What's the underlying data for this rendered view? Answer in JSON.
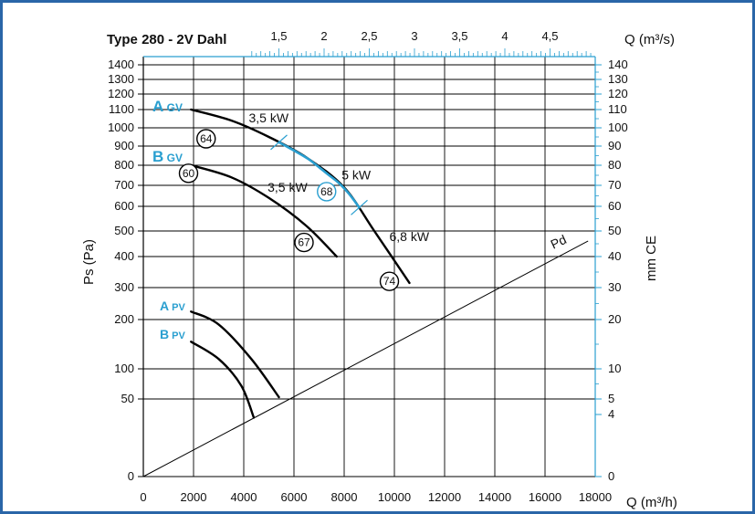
{
  "chart_data": {
    "type": "line",
    "title": "Type 280 - 2V Dahl",
    "xlabel": "Q (m³/h)",
    "xlabel_top": "Q (m³/s)",
    "ylabel": "Ps  (Pa)",
    "ylabel_right": "mm CE",
    "x_range": [
      0,
      18000
    ],
    "x_ticks": [
      "0",
      "2000",
      "4000",
      "6000",
      "8000",
      "10000",
      "12000",
      "14000",
      "16000",
      "18000"
    ],
    "x_top_ticks": [
      "1,5",
      "2",
      "2,5",
      "3",
      "3,5",
      "4",
      "4,5"
    ],
    "y_left_ticks": [
      "1400",
      "1300",
      "1200",
      "1100",
      "1000",
      "900",
      "800",
      "700",
      "600",
      "500",
      "400",
      "300",
      "200",
      "100",
      "50",
      "0"
    ],
    "y_right_ticks": [
      "140",
      "130",
      "120",
      "110",
      "100",
      "90",
      "80",
      "70",
      "60",
      "50",
      "40",
      "30",
      "20",
      "10",
      "5",
      "4",
      "0"
    ],
    "grid": true,
    "series": [
      {
        "name": "A GV",
        "name_main": "A",
        "name_sub": "GV",
        "color": "#000000",
        "highlight_color": "#2a9fd0",
        "x": [
          1900,
          3500,
          5000,
          6500,
          8000,
          9200,
          10600
        ],
        "y": [
          1100,
          1040,
          950,
          840,
          690,
          500,
          315
        ]
      },
      {
        "name": "B GV",
        "name_main": "B",
        "name_sub": "GV",
        "color": "#000000",
        "x": [
          1900,
          3500,
          5000,
          6500,
          7700
        ],
        "y": [
          800,
          740,
          640,
          520,
          400
        ]
      },
      {
        "name": "A PV",
        "name_main": "A",
        "name_sub": "PV",
        "color": "#000000",
        "x": [
          1900,
          3000,
          4300,
          5400
        ],
        "y": [
          225,
          190,
          120,
          53
        ]
      },
      {
        "name": "B PV",
        "name_main": "B",
        "name_sub": "PV",
        "color": "#000000",
        "x": [
          1900,
          3000,
          3900,
          4400
        ],
        "y": [
          155,
          120,
          72,
          38
        ]
      },
      {
        "name": "Pd",
        "color": "#000000",
        "x": [
          0,
          17700
        ],
        "y": [
          0,
          460
        ]
      }
    ],
    "annotations": [
      {
        "text": "3,5 kW",
        "x": 4200,
        "y": 1030
      },
      {
        "text": "5 kW",
        "x": 7900,
        "y": 730
      },
      {
        "text": "3,5 kW",
        "x": 4950,
        "y": 670
      },
      {
        "text": "6,8 kW",
        "x": 9800,
        "y": 460
      }
    ],
    "efficiency_markers": [
      {
        "text": "64",
        "x": 2500,
        "y": 940,
        "color": "#000000"
      },
      {
        "text": "60",
        "x": 1800,
        "y": 760,
        "color": "#000000"
      },
      {
        "text": "68",
        "x": 7300,
        "y": 670,
        "color": "#2a9fd0"
      },
      {
        "text": "67",
        "x": 6400,
        "y": 455,
        "color": "#000000"
      },
      {
        "text": "74",
        "x": 9800,
        "y": 320,
        "color": "#000000"
      }
    ],
    "highlight_segment": {
      "series": "A GV",
      "x_from": 5400,
      "x_to": 8600,
      "color": "#2a9fd0"
    },
    "colors": {
      "frame": "#2a66a8",
      "accent": "#2a9fd0",
      "curve": "#000000"
    }
  }
}
